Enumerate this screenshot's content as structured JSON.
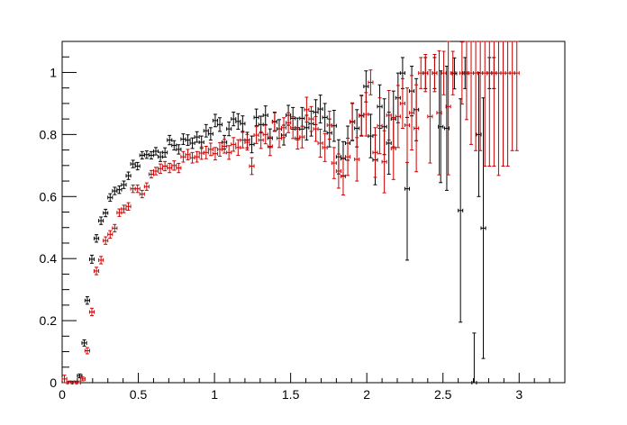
{
  "chart_data": {
    "type": "scatter",
    "title": "",
    "xlabel": "",
    "ylabel": "",
    "xlim": [
      0,
      3.3
    ],
    "ylim": [
      0,
      1.1
    ],
    "grid": false,
    "legend": "none",
    "x_ticks": [
      0,
      0.5,
      1,
      1.5,
      2,
      2.5,
      3
    ],
    "x_tick_labels": [
      "0",
      "0.5",
      "1",
      "1.5",
      "2",
      "2.5",
      "3"
    ],
    "y_ticks": [
      0,
      0.2,
      0.4,
      0.6,
      0.8,
      1
    ],
    "y_tick_labels": [
      "0",
      "0.2",
      "0.4",
      "0.6",
      "0.8",
      "1"
    ],
    "x_bin_halfwidth": 0.015,
    "series": [
      {
        "color": "#000000",
        "points": [
          [
            0.055,
            0.0,
            0.005
          ],
          [
            0.085,
            0.0,
            0.005
          ],
          [
            0.115,
            0.022,
            0.006
          ],
          [
            0.145,
            0.128,
            0.01
          ],
          [
            0.165,
            0.265,
            0.012
          ],
          [
            0.195,
            0.398,
            0.013
          ],
          [
            0.225,
            0.465,
            0.012
          ],
          [
            0.255,
            0.522,
            0.012
          ],
          [
            0.285,
            0.547,
            0.012
          ],
          [
            0.315,
            0.597,
            0.012
          ],
          [
            0.345,
            0.618,
            0.012
          ],
          [
            0.375,
            0.622,
            0.012
          ],
          [
            0.405,
            0.638,
            0.012
          ],
          [
            0.435,
            0.667,
            0.012
          ],
          [
            0.465,
            0.705,
            0.012
          ],
          [
            0.495,
            0.698,
            0.012
          ],
          [
            0.525,
            0.733,
            0.012
          ],
          [
            0.555,
            0.735,
            0.012
          ],
          [
            0.585,
            0.733,
            0.012
          ],
          [
            0.615,
            0.746,
            0.012
          ],
          [
            0.645,
            0.728,
            0.015
          ],
          [
            0.675,
            0.742,
            0.015
          ],
          [
            0.705,
            0.782,
            0.015
          ],
          [
            0.735,
            0.765,
            0.015
          ],
          [
            0.765,
            0.752,
            0.015
          ],
          [
            0.795,
            0.785,
            0.017
          ],
          [
            0.825,
            0.782,
            0.017
          ],
          [
            0.855,
            0.772,
            0.017
          ],
          [
            0.885,
            0.792,
            0.017
          ],
          [
            0.915,
            0.775,
            0.02
          ],
          [
            0.945,
            0.812,
            0.02
          ],
          [
            0.975,
            0.802,
            0.02
          ],
          [
            1.005,
            0.845,
            0.02
          ],
          [
            1.035,
            0.832,
            0.022
          ],
          [
            1.065,
            0.775,
            0.022
          ],
          [
            1.095,
            0.818,
            0.022
          ],
          [
            1.125,
            0.85,
            0.022
          ],
          [
            1.155,
            0.842,
            0.025
          ],
          [
            1.185,
            0.835,
            0.025
          ],
          [
            1.215,
            0.782,
            0.025
          ],
          [
            1.245,
            0.768,
            0.027
          ],
          [
            1.275,
            0.855,
            0.027
          ],
          [
            1.305,
            0.832,
            0.027
          ],
          [
            1.335,
            0.862,
            0.03
          ],
          [
            1.365,
            0.788,
            0.03
          ],
          [
            1.395,
            0.842,
            0.03
          ],
          [
            1.425,
            0.818,
            0.03
          ],
          [
            1.455,
            0.798,
            0.032
          ],
          [
            1.485,
            0.862,
            0.032
          ],
          [
            1.515,
            0.852,
            0.035
          ],
          [
            1.545,
            0.818,
            0.035
          ],
          [
            1.575,
            0.852,
            0.035
          ],
          [
            1.605,
            0.822,
            0.04
          ],
          [
            1.635,
            0.835,
            0.04
          ],
          [
            1.665,
            0.872,
            0.04
          ],
          [
            1.695,
            0.882,
            0.045
          ],
          [
            1.725,
            0.855,
            0.045
          ],
          [
            1.755,
            0.805,
            0.045
          ],
          [
            1.785,
            0.828,
            0.05
          ],
          [
            1.815,
            0.728,
            0.055
          ],
          [
            1.845,
            0.722,
            0.055
          ],
          [
            1.875,
            0.772,
            0.055
          ],
          [
            1.905,
            0.84,
            0.06
          ],
          [
            1.935,
            0.82,
            0.06
          ],
          [
            1.965,
            0.86,
            0.065
          ],
          [
            1.995,
            0.955,
            0.05
          ],
          [
            2.025,
            0.795,
            0.07
          ],
          [
            2.055,
            0.718,
            0.08
          ],
          [
            2.085,
            0.89,
            0.07
          ],
          [
            2.115,
            0.825,
            0.09
          ],
          [
            2.145,
            0.772,
            0.1
          ],
          [
            2.175,
            0.85,
            0.09
          ],
          [
            2.205,
            0.918,
            0.08
          ],
          [
            2.235,
            0.998,
            0.05
          ],
          [
            2.265,
            0.625,
            0.23
          ],
          [
            2.295,
            0.94,
            0.08
          ],
          [
            2.325,
            0.88,
            0.1
          ],
          [
            2.385,
            0.998,
            0.05
          ],
          [
            2.445,
            0.998,
            0.05
          ],
          [
            2.485,
            0.825,
            0.18
          ],
          [
            2.525,
            0.82,
            0.2
          ],
          [
            2.575,
            0.997,
            0.05
          ],
          [
            2.615,
            0.555,
            0.36
          ],
          [
            2.645,
            0.998,
            0.05
          ],
          [
            2.705,
            0.0,
            0.16
          ],
          [
            2.735,
            0.8,
            0.2
          ],
          [
            2.765,
            0.498,
            0.42
          ],
          [
            2.805,
            0.998,
            0.05
          ],
          [
            2.835,
            0.998,
            0.05
          ]
        ]
      },
      {
        "color": "#cc0000",
        "points": [
          [
            0.015,
            0.012,
            0.012
          ],
          [
            0.045,
            0.0,
            0.005
          ],
          [
            0.075,
            0.0,
            0.005
          ],
          [
            0.105,
            0.0,
            0.005
          ],
          [
            0.135,
            0.012,
            0.006
          ],
          [
            0.165,
            0.103,
            0.01
          ],
          [
            0.195,
            0.228,
            0.012
          ],
          [
            0.225,
            0.36,
            0.012
          ],
          [
            0.255,
            0.395,
            0.012
          ],
          [
            0.285,
            0.458,
            0.012
          ],
          [
            0.315,
            0.478,
            0.012
          ],
          [
            0.345,
            0.498,
            0.012
          ],
          [
            0.375,
            0.548,
            0.012
          ],
          [
            0.405,
            0.56,
            0.012
          ],
          [
            0.435,
            0.568,
            0.012
          ],
          [
            0.465,
            0.625,
            0.012
          ],
          [
            0.495,
            0.625,
            0.012
          ],
          [
            0.525,
            0.608,
            0.012
          ],
          [
            0.555,
            0.632,
            0.012
          ],
          [
            0.585,
            0.672,
            0.012
          ],
          [
            0.615,
            0.682,
            0.012
          ],
          [
            0.645,
            0.69,
            0.015
          ],
          [
            0.675,
            0.698,
            0.015
          ],
          [
            0.705,
            0.692,
            0.015
          ],
          [
            0.735,
            0.7,
            0.015
          ],
          [
            0.765,
            0.692,
            0.015
          ],
          [
            0.795,
            0.728,
            0.017
          ],
          [
            0.825,
            0.735,
            0.017
          ],
          [
            0.855,
            0.725,
            0.017
          ],
          [
            0.885,
            0.728,
            0.017
          ],
          [
            0.915,
            0.74,
            0.02
          ],
          [
            0.945,
            0.742,
            0.02
          ],
          [
            0.975,
            0.752,
            0.02
          ],
          [
            1.005,
            0.738,
            0.02
          ],
          [
            1.035,
            0.752,
            0.022
          ],
          [
            1.065,
            0.762,
            0.022
          ],
          [
            1.095,
            0.742,
            0.022
          ],
          [
            1.125,
            0.768,
            0.022
          ],
          [
            1.155,
            0.758,
            0.025
          ],
          [
            1.185,
            0.782,
            0.025
          ],
          [
            1.215,
            0.775,
            0.025
          ],
          [
            1.245,
            0.698,
            0.027
          ],
          [
            1.275,
            0.798,
            0.027
          ],
          [
            1.305,
            0.782,
            0.027
          ],
          [
            1.335,
            0.8,
            0.03
          ],
          [
            1.365,
            0.762,
            0.03
          ],
          [
            1.395,
            0.84,
            0.03
          ],
          [
            1.425,
            0.788,
            0.03
          ],
          [
            1.455,
            0.822,
            0.032
          ],
          [
            1.485,
            0.838,
            0.032
          ],
          [
            1.515,
            0.822,
            0.035
          ],
          [
            1.545,
            0.788,
            0.035
          ],
          [
            1.575,
            0.792,
            0.035
          ],
          [
            1.605,
            0.88,
            0.04
          ],
          [
            1.635,
            0.85,
            0.04
          ],
          [
            1.665,
            0.818,
            0.04
          ],
          [
            1.695,
            0.772,
            0.045
          ],
          [
            1.725,
            0.758,
            0.045
          ],
          [
            1.755,
            0.83,
            0.045
          ],
          [
            1.785,
            0.708,
            0.05
          ],
          [
            1.815,
            0.682,
            0.055
          ],
          [
            1.845,
            0.665,
            0.06
          ],
          [
            1.875,
            0.728,
            0.06
          ],
          [
            1.905,
            0.842,
            0.06
          ],
          [
            1.935,
            0.72,
            0.07
          ],
          [
            1.965,
            0.862,
            0.065
          ],
          [
            1.995,
            0.865,
            0.07
          ],
          [
            2.025,
            0.968,
            0.04
          ],
          [
            2.055,
            0.742,
            0.08
          ],
          [
            2.085,
            0.828,
            0.09
          ],
          [
            2.115,
            0.712,
            0.1
          ],
          [
            2.145,
            0.862,
            0.08
          ],
          [
            2.175,
            0.755,
            0.1
          ],
          [
            2.205,
            0.858,
            0.1
          ],
          [
            2.235,
            0.9,
            0.08
          ],
          [
            2.265,
            0.83,
            0.12
          ],
          [
            2.295,
            0.87,
            0.12
          ],
          [
            2.325,
            0.82,
            0.14
          ],
          [
            2.355,
            0.998,
            0.05
          ],
          [
            2.385,
            0.998,
            0.06
          ],
          [
            2.415,
            0.858,
            0.15
          ],
          [
            2.445,
            0.998,
            0.06
          ],
          [
            2.475,
            0.87,
            0.2
          ],
          [
            2.505,
            0.998,
            0.07
          ],
          [
            2.535,
            0.89,
            0.22
          ],
          [
            2.565,
            0.998,
            0.07
          ],
          [
            2.625,
            0.998,
            0.1
          ],
          [
            2.655,
            0.998,
            0.15
          ],
          [
            2.685,
            0.998,
            0.23
          ],
          [
            2.715,
            0.998,
            0.25
          ],
          [
            2.745,
            0.998,
            0.25
          ],
          [
            2.775,
            0.998,
            0.3
          ],
          [
            2.805,
            0.998,
            0.3
          ],
          [
            2.835,
            0.998,
            0.3
          ],
          [
            2.865,
            0.998,
            0.33
          ],
          [
            2.895,
            0.998,
            0.3
          ],
          [
            2.925,
            0.998,
            0.3
          ],
          [
            2.955,
            0.998,
            0.25
          ],
          [
            2.985,
            0.998,
            0.25
          ]
        ]
      }
    ]
  }
}
